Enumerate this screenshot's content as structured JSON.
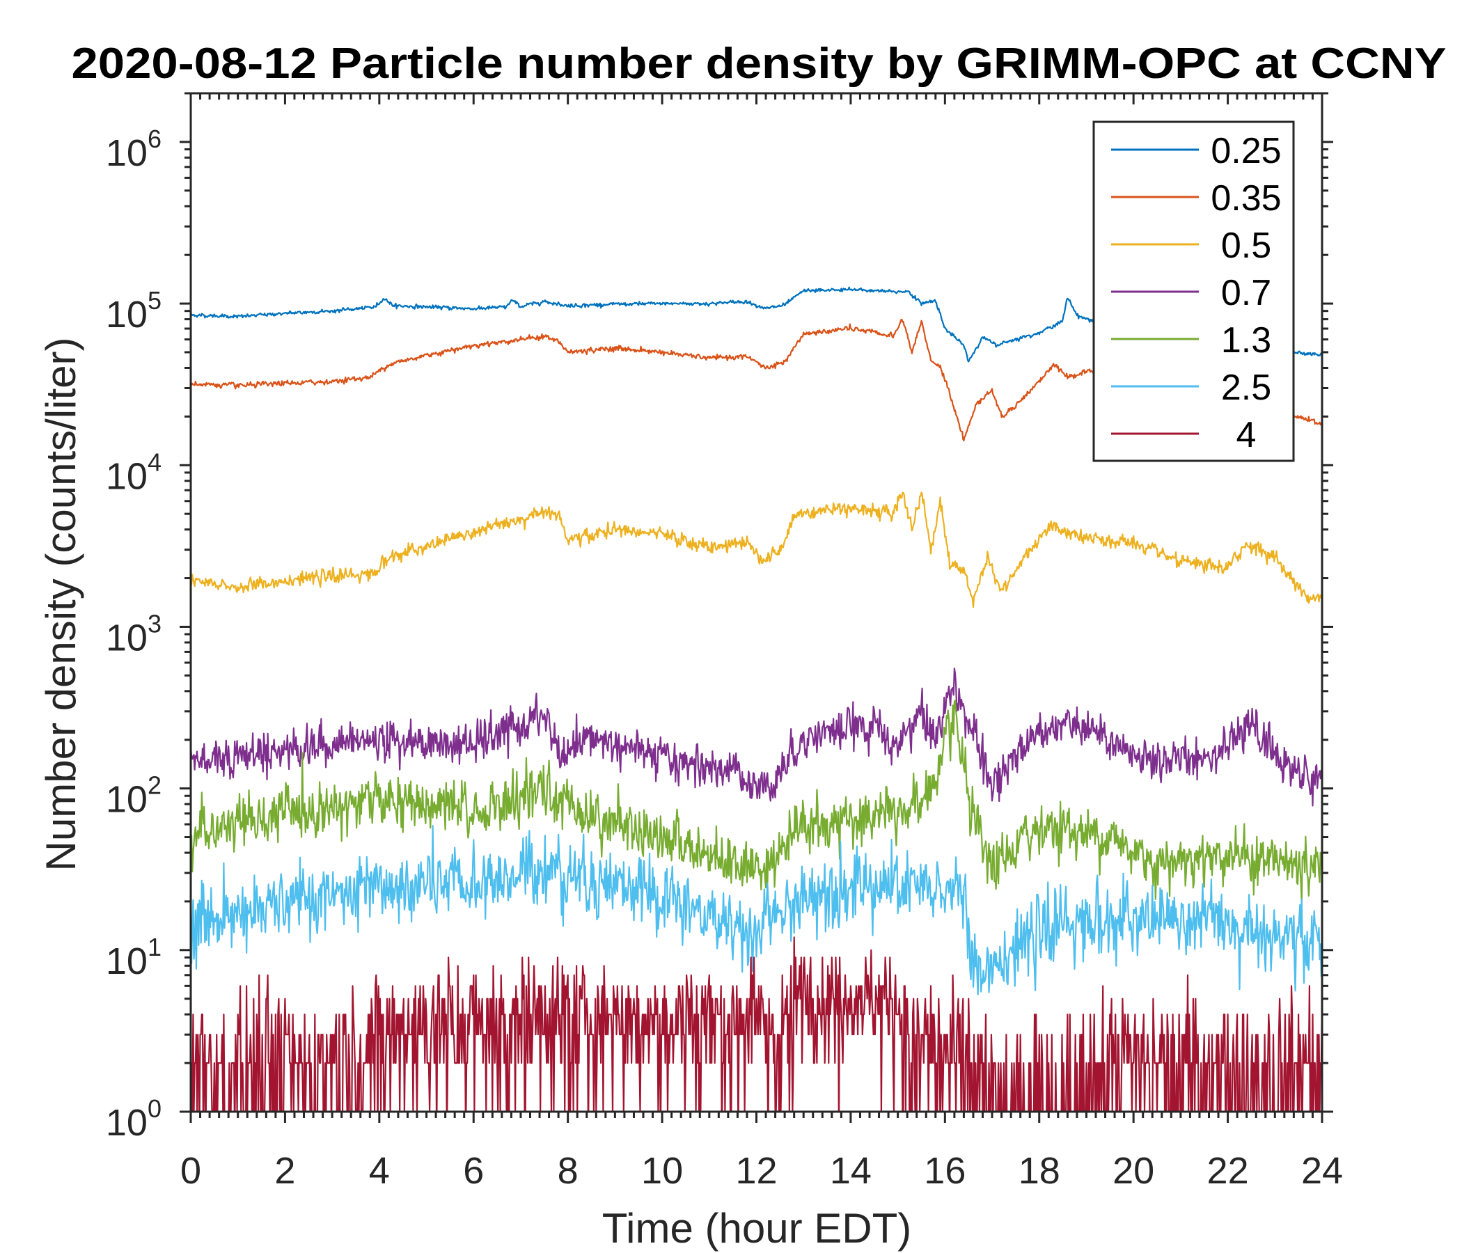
{
  "chart_data": {
    "type": "line",
    "title": "2020-08-12 Particle number density by GRIMM-OPC at CCNY",
    "xlabel": "Time (hour EDT)",
    "ylabel": "Number density (counts/liter)",
    "xlim": [
      0,
      24
    ],
    "ylim": [
      1,
      2000000
    ],
    "yscale": "log",
    "xticks": [
      0,
      2,
      4,
      6,
      8,
      10,
      12,
      14,
      16,
      18,
      20,
      22,
      24
    ],
    "xtick_labels": [
      "0",
      "2",
      "4",
      "6",
      "8",
      "10",
      "12",
      "14",
      "16",
      "18",
      "20",
      "22",
      "24"
    ],
    "yticks": [
      1,
      10,
      100,
      1000,
      10000,
      100000,
      1000000
    ],
    "ytick_labels": [
      {
        "base": "10",
        "exp": "0"
      },
      {
        "base": "10",
        "exp": "1"
      },
      {
        "base": "10",
        "exp": "2"
      },
      {
        "base": "10",
        "exp": "3"
      },
      {
        "base": "10",
        "exp": "4"
      },
      {
        "base": "10",
        "exp": "5"
      },
      {
        "base": "10",
        "exp": "6"
      }
    ],
    "grid": false,
    "legend_position": "top-right",
    "series": [
      {
        "name": "0.25",
        "color": "#0072BD",
        "noise_dex": 0.008,
        "x": [
          0,
          1,
          2,
          3,
          3.9,
          4.1,
          4.3,
          6,
          6.7,
          6.8,
          7,
          7.5,
          8,
          9,
          10,
          11,
          11.8,
          12.2,
          12.6,
          13,
          14,
          15,
          15.2,
          15.5,
          15.8,
          16,
          16.4,
          16.5,
          16.8,
          17.1,
          17.3,
          18,
          18.5,
          18.6,
          18.8,
          19,
          20,
          21,
          22,
          23,
          24
        ],
        "y": [
          85000,
          83000,
          87000,
          90000,
          95000,
          108000,
          97000,
          93000,
          95000,
          105000,
          96000,
          103000,
          97000,
          99000,
          100000,
          100000,
          103000,
          93000,
          98000,
          120000,
          122000,
          118000,
          120000,
          100000,
          105000,
          70000,
          55000,
          44000,
          62000,
          55000,
          58000,
          66000,
          78000,
          110000,
          85000,
          80000,
          70000,
          65000,
          60000,
          52000,
          48000
        ]
      },
      {
        "name": "0.35",
        "color": "#D95319",
        "noise_dex": 0.012,
        "x": [
          0,
          1,
          2,
          3,
          3.8,
          4.2,
          5,
          6,
          7,
          7.5,
          7.8,
          8,
          9,
          10,
          11,
          11.8,
          12.2,
          12.6,
          13,
          14,
          14.9,
          15.1,
          15.3,
          15.5,
          15.7,
          15.9,
          16.1,
          16.4,
          16.7,
          17,
          17.2,
          17.6,
          18,
          18.3,
          18.6,
          19,
          20,
          21,
          22,
          23,
          23.7,
          24
        ],
        "y": [
          32000,
          31000,
          32000,
          33000,
          35000,
          42000,
          48000,
          55000,
          60000,
          63000,
          58000,
          50000,
          53000,
          50000,
          46000,
          47000,
          40000,
          43000,
          65000,
          70000,
          63000,
          80000,
          50000,
          78000,
          45000,
          40000,
          28000,
          14500,
          25000,
          29000,
          20000,
          25000,
          33000,
          42000,
          35000,
          38000,
          35000,
          30000,
          26000,
          22000,
          19000,
          18000
        ]
      },
      {
        "name": "0.5",
        "color": "#EDB120",
        "noise_dex": 0.03,
        "x": [
          0,
          1,
          2,
          3,
          3.9,
          4.2,
          5,
          5.5,
          6.5,
          7.5,
          7.8,
          8,
          9,
          10,
          11,
          11.8,
          12.1,
          12.5,
          12.8,
          14,
          14.9,
          15.1,
          15.3,
          15.5,
          15.7,
          15.9,
          16.1,
          16.4,
          16.6,
          16.9,
          17.2,
          17.6,
          18.2,
          19,
          20,
          21,
          22,
          22.4,
          23,
          23.6,
          24
        ],
        "y": [
          1900,
          1750,
          1950,
          2050,
          2150,
          2700,
          3100,
          3500,
          4200,
          5200,
          5000,
          3400,
          4000,
          3700,
          3100,
          3300,
          2600,
          2900,
          5000,
          5500,
          5000,
          7000,
          4000,
          7000,
          3000,
          6000,
          2500,
          2200,
          1500,
          2700,
          1600,
          2500,
          4200,
          3500,
          3300,
          2500,
          2300,
          3300,
          2700,
          1600,
          1500
        ]
      },
      {
        "name": "0.7",
        "color": "#7E2F8E",
        "noise_dex": 0.09,
        "x": [
          0,
          2,
          4,
          6,
          7.5,
          7.9,
          8.5,
          10,
          11.5,
          12.2,
          12.6,
          13,
          14.5,
          14.9,
          15.5,
          15.8,
          16.2,
          16.5,
          17,
          18,
          19,
          20,
          21,
          22,
          22.5,
          23,
          23.8,
          24
        ],
        "y": [
          150,
          175,
          200,
          185,
          280,
          150,
          210,
          150,
          130,
          100,
          140,
          210,
          250,
          170,
          300,
          200,
          480,
          250,
          100,
          250,
          240,
          150,
          150,
          180,
          250,
          160,
          110,
          120
        ]
      },
      {
        "name": "1.3",
        "color": "#77AC30",
        "noise_dex": 0.12,
        "x": [
          0,
          2,
          4,
          6,
          7.5,
          8.5,
          10,
          11,
          12,
          12.5,
          13,
          14.5,
          15.5,
          15.9,
          16.2,
          16.6,
          17,
          18,
          19.5,
          20.5,
          22,
          23,
          24
        ],
        "y": [
          50,
          70,
          85,
          70,
          95,
          70,
          50,
          40,
          32,
          40,
          60,
          65,
          80,
          130,
          280,
          60,
          30,
          60,
          50,
          35,
          40,
          35,
          32
        ]
      },
      {
        "name": "2.5",
        "color": "#4DBEEE",
        "noise_dex": 0.16,
        "x": [
          0,
          2,
          4,
          6,
          7.5,
          9,
          10,
          11,
          12,
          12.6,
          13.5,
          15,
          16,
          16.3,
          16.6,
          17,
          17.5,
          18.5,
          20,
          22,
          23.5,
          24
        ],
        "y": [
          15,
          19,
          24,
          25,
          33,
          26,
          21,
          16,
          13,
          17,
          25,
          24,
          22,
          30,
          7,
          9,
          10,
          15,
          15,
          15,
          11,
          12
        ]
      },
      {
        "name": "4",
        "color": "#A2142F",
        "noise_dex": 0,
        "x": [
          0,
          3,
          4,
          7,
          12,
          12.5,
          13,
          15,
          15.2,
          16.5,
          17,
          18.5,
          19,
          24
        ],
        "y": [
          2,
          2,
          3,
          4,
          4,
          3,
          5.5,
          5,
          2.5,
          2,
          1,
          1,
          2,
          2
        ]
      }
    ]
  }
}
